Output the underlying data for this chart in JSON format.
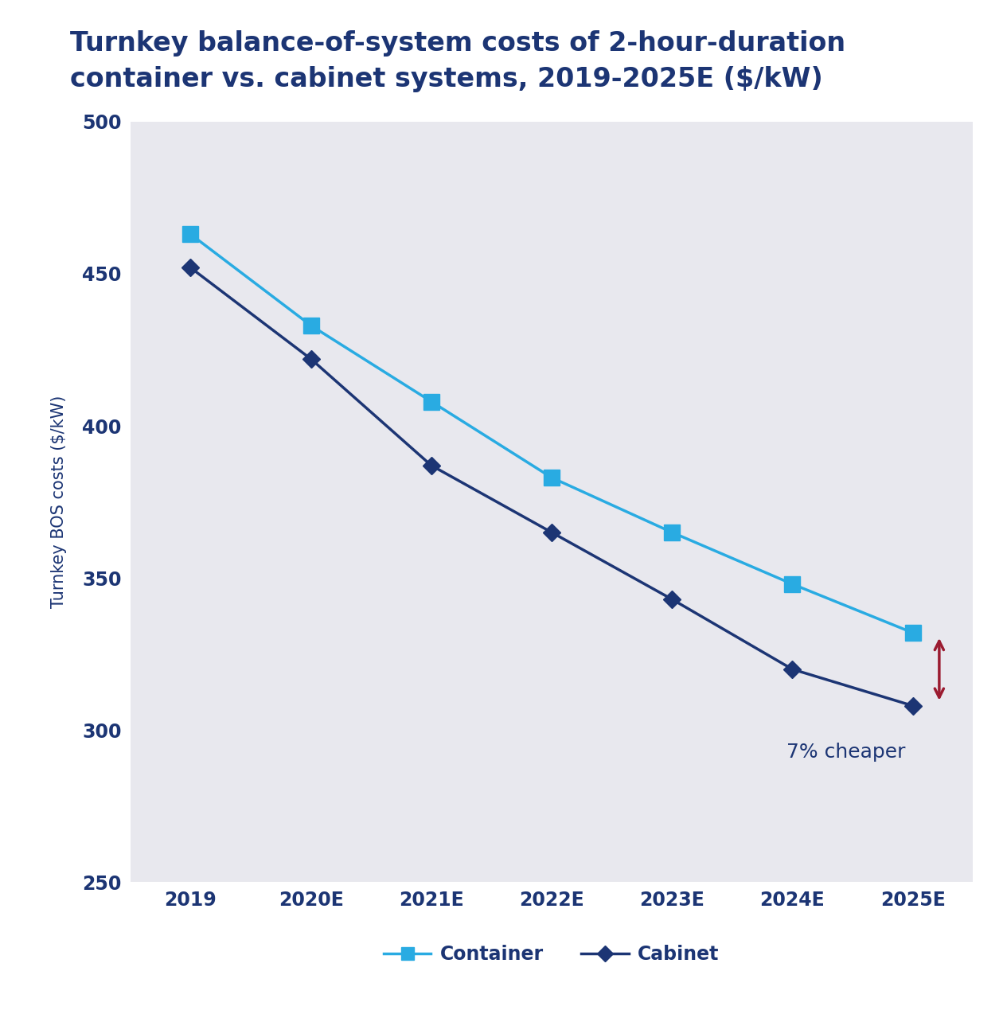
{
  "title_line1": "Turnkey balance-of-system costs of 2-hour-duration",
  "title_line2": "container vs. cabinet systems, 2019-2025E ($/kW)",
  "ylabel": "Turnkey BOS costs ($/kW)",
  "categories": [
    "2019",
    "2020E",
    "2021E",
    "2022E",
    "2023E",
    "2024E",
    "2025E"
  ],
  "container_values": [
    463,
    433,
    408,
    383,
    365,
    348,
    332
  ],
  "cabinet_values": [
    452,
    422,
    387,
    365,
    343,
    320,
    308
  ],
  "container_color": "#29ABE2",
  "cabinet_color": "#1C3574",
  "container_label": "Container",
  "cabinet_label": "Cabinet",
  "arrow_color": "#9B1B30",
  "annotation_text": "7% cheaper",
  "annotation_color": "#1C3574",
  "plot_bg_color": "#E8E8EE",
  "fig_bg_color": "#FFFFFF",
  "ylim_min": 250,
  "ylim_max": 500,
  "yticks": [
    250,
    300,
    350,
    400,
    450,
    500
  ],
  "title_color": "#1C3574",
  "title_fontsize": 24,
  "axis_label_fontsize": 15,
  "tick_fontsize": 17,
  "legend_fontsize": 17
}
